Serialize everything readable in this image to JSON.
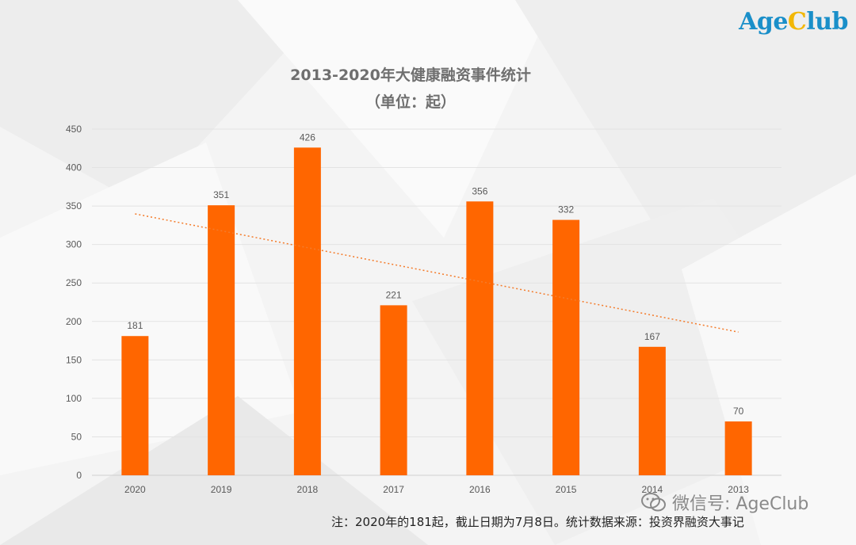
{
  "logo": {
    "part1": "Age",
    "part2": "C",
    "part3": "lub"
  },
  "watermark": {
    "text": "微信号: AgeClub"
  },
  "note": "注：2020年的181起，截止日期为7月8日。统计数据来源：投资界融资大事记",
  "colors": {
    "bar": "#ff6600",
    "trendline": "#f47b2a",
    "axis_text": "#595959",
    "grid": "#e3e3e3"
  },
  "chart_data": {
    "type": "bar",
    "title": "2013-2020年大健康融资事件统计",
    "subtitle": "（单位：起）",
    "categories": [
      "2020",
      "2019",
      "2018",
      "2017",
      "2016",
      "2015",
      "2014",
      "2013"
    ],
    "values": [
      181,
      351,
      426,
      221,
      356,
      332,
      167,
      70
    ],
    "yticks": [
      0,
      50,
      100,
      150,
      200,
      250,
      300,
      350,
      400,
      450
    ],
    "ylim": [
      0,
      450
    ],
    "grid": true,
    "trendline": {
      "type": "linear",
      "style": "dotted"
    },
    "data_labels": true
  }
}
